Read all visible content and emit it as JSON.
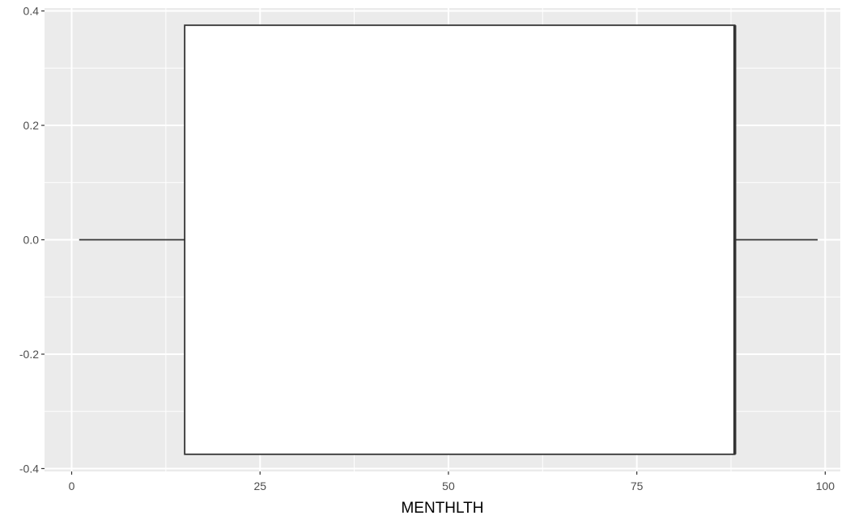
{
  "chart_data": {
    "type": "boxplot",
    "title": "",
    "xlabel": "MENTHLTH",
    "ylabel": "",
    "xlim": [
      -3.6,
      102
    ],
    "ylim": [
      -0.405,
      0.405
    ],
    "x_ticks": [
      0,
      25,
      50,
      75,
      100
    ],
    "x_tick_labels": [
      "0",
      "25",
      "50",
      "75",
      "100"
    ],
    "x_minor_ticks": [
      12.5,
      37.5,
      62.5,
      87.5
    ],
    "y_ticks": [
      -0.4,
      -0.2,
      0.0,
      0.2,
      0.4
    ],
    "y_tick_labels": [
      "-0.4",
      "-0.2",
      "0.0",
      "0.2",
      "0.4"
    ],
    "y_minor_ticks": [
      -0.3,
      -0.1,
      0.1,
      0.3
    ],
    "grid": true,
    "box": {
      "min": 1,
      "q1": 15,
      "median": 88,
      "q3": 88,
      "max": 99,
      "y_center": 0,
      "half_height": 0.375
    },
    "colors": {
      "panel": "#ebebeb",
      "grid": "#ffffff",
      "box_fill": "#ffffff",
      "box_line": "#333333",
      "tick_text": "#4d4d4d",
      "title_text": "#000000"
    }
  }
}
